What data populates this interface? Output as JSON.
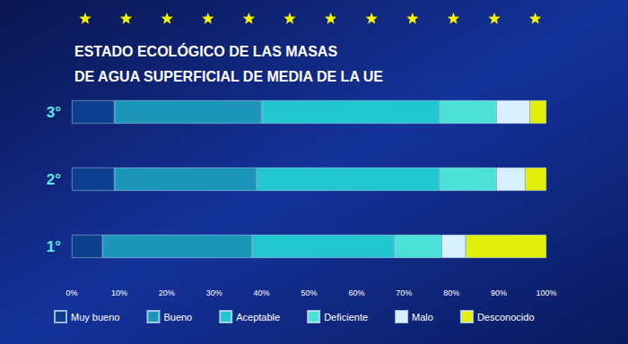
{
  "chart_data": {
    "type": "bar",
    "title": "ESTADO ECOLÓGICO DE LAS MASAS\nDE AGUA SUPERFICIAL DE MEDIA DE LA UE",
    "orientation": "horizontal",
    "stacked": true,
    "grid": false,
    "legend": "bottom",
    "categories": [
      "1°",
      "2°",
      "3°"
    ],
    "series": [
      {
        "name": "Muy bueno",
        "color": "#0d3f8f",
        "values": [
          6.5,
          9,
          9
        ]
      },
      {
        "name": "Bueno",
        "color": "#1b95b8",
        "values": [
          31.5,
          30,
          31
        ]
      },
      {
        "name": "Aceptable",
        "color": "#22c6cf",
        "values": [
          30,
          38.5,
          37.5
        ]
      },
      {
        "name": "Deficiente",
        "color": "#4de0d6",
        "values": [
          10,
          12,
          12
        ]
      },
      {
        "name": "Malo",
        "color": "#d6f0ff",
        "values": [
          5,
          6,
          7
        ]
      },
      {
        "name": "Desconocido",
        "color": "#e1ef0a",
        "values": [
          17,
          4.5,
          3.5
        ]
      }
    ],
    "xlim": [
      0,
      100
    ],
    "xticks": [
      {
        "value": 0,
        "label": "0%"
      },
      {
        "value": 10,
        "label": "10%"
      },
      {
        "value": 20,
        "label": "20%"
      },
      {
        "value": 30,
        "label": "30%"
      },
      {
        "value": 40,
        "label": "40%"
      },
      {
        "value": 50,
        "label": "50%"
      },
      {
        "value": 60,
        "label": "60%"
      },
      {
        "value": 70,
        "label": "70%"
      },
      {
        "value": 80,
        "label": "80%"
      },
      {
        "value": 90,
        "label": "90%"
      },
      {
        "value": 100,
        "label": "100%"
      }
    ]
  }
}
